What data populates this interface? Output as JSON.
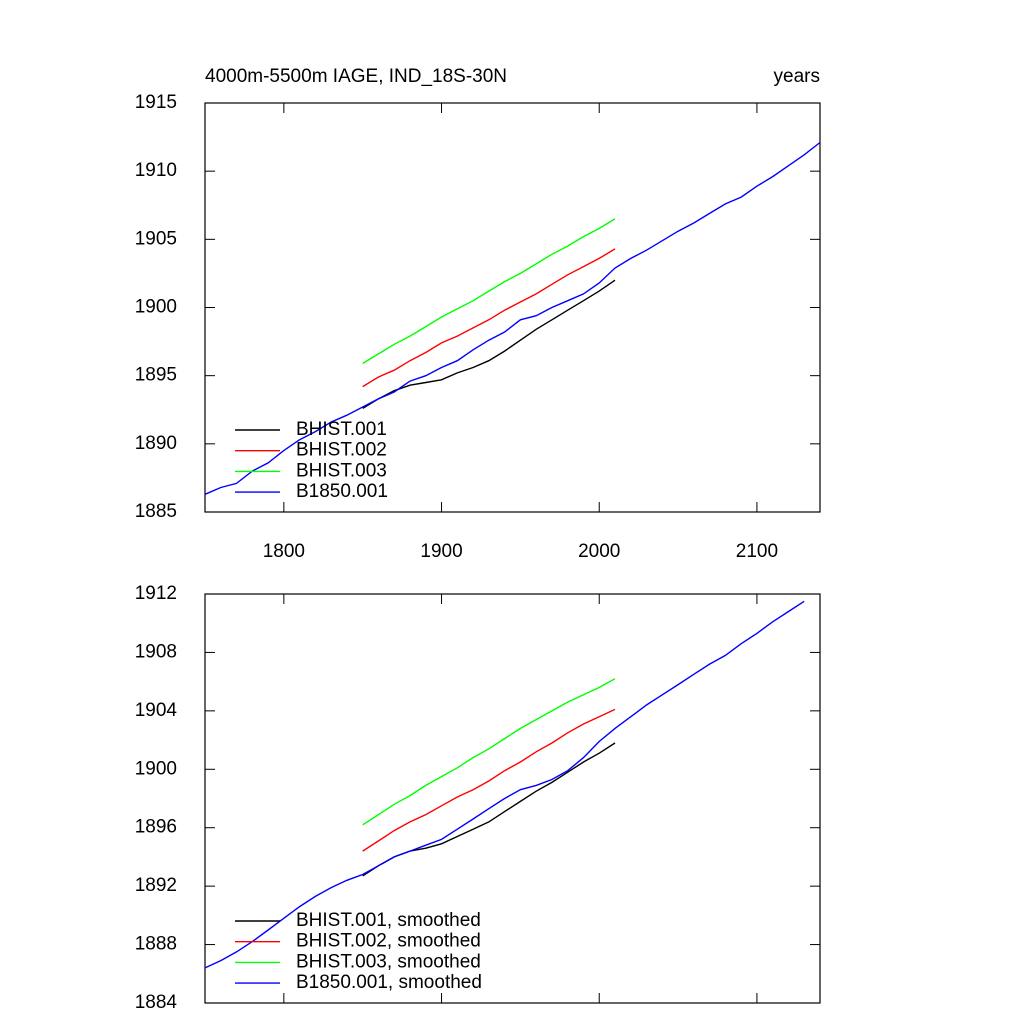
{
  "chart_data": [
    {
      "type": "line",
      "title": "4000m-5500m IAGE, IND_18S-30N",
      "subtitle": "years",
      "x": [
        1750,
        1760,
        1770,
        1780,
        1790,
        1800,
        1810,
        1820,
        1830,
        1840,
        1850,
        1860,
        1870,
        1880,
        1890,
        1900,
        1910,
        1920,
        1930,
        1940,
        1950,
        1960,
        1970,
        1980,
        1990,
        2000,
        2010,
        2020,
        2030,
        2040,
        2050,
        2060,
        2070,
        2080,
        2090,
        2100,
        2110,
        2120,
        2130,
        2140
      ],
      "xlim": [
        1750,
        2140
      ],
      "xticks": [
        1800,
        1900,
        2000,
        2100
      ],
      "ylim": [
        1885,
        1915
      ],
      "yticks": [
        1885,
        1890,
        1895,
        1900,
        1905,
        1910,
        1915
      ],
      "legend": "lower left",
      "series": [
        {
          "name": "BHIST.001",
          "color": "#000000",
          "values": [
            null,
            null,
            null,
            null,
            null,
            null,
            null,
            null,
            null,
            null,
            1892.6,
            1893.3,
            1893.9,
            1894.3,
            1894.5,
            1894.7,
            1895.2,
            1895.6,
            1896.1,
            1896.8,
            1897.6,
            1898.4,
            1899.1,
            1899.8,
            1900.5,
            1901.2,
            1902.0,
            null,
            null,
            null,
            null,
            null,
            null,
            null,
            null,
            null,
            null,
            null,
            null,
            null
          ]
        },
        {
          "name": "BHIST.002",
          "color": "#ff0000",
          "values": [
            null,
            null,
            null,
            null,
            null,
            null,
            null,
            null,
            null,
            null,
            1894.2,
            1894.9,
            1895.4,
            1896.1,
            1896.7,
            1897.4,
            1897.9,
            1898.5,
            1899.1,
            1899.8,
            1900.4,
            1901.0,
            1901.7,
            1902.4,
            1903.0,
            1903.6,
            1904.3,
            null,
            null,
            null,
            null,
            null,
            null,
            null,
            null,
            null,
            null,
            null,
            null,
            null
          ]
        },
        {
          "name": "BHIST.003",
          "color": "#00ff00",
          "values": [
            null,
            null,
            null,
            null,
            null,
            null,
            null,
            null,
            null,
            null,
            1895.9,
            1896.6,
            1897.3,
            1897.9,
            1898.6,
            1899.3,
            1899.9,
            1900.5,
            1901.2,
            1901.9,
            1902.5,
            1903.2,
            1903.9,
            1904.5,
            1905.2,
            1905.8,
            1906.5,
            null,
            null,
            null,
            null,
            null,
            null,
            null,
            null,
            null,
            null,
            null,
            null,
            null
          ]
        },
        {
          "name": "B1850.001",
          "color": "#0000ff",
          "values": [
            1886.3,
            1886.8,
            1887.1,
            1888.0,
            1888.6,
            1889.5,
            1890.3,
            1890.9,
            1891.6,
            1892.1,
            1892.7,
            1893.3,
            1893.8,
            1894.6,
            1895.0,
            1895.6,
            1896.1,
            1896.9,
            1897.6,
            1898.2,
            1899.1,
            1899.4,
            1900.0,
            1900.5,
            1901.0,
            1901.8,
            1902.9,
            1903.6,
            1904.2,
            1904.9,
            1905.6,
            1906.2,
            1906.9,
            1907.6,
            1908.1,
            1908.9,
            1909.6,
            1910.4,
            1911.2,
            1912.1
          ]
        }
      ]
    },
    {
      "type": "line",
      "x": [
        1750,
        1760,
        1770,
        1780,
        1790,
        1800,
        1810,
        1820,
        1830,
        1840,
        1850,
        1860,
        1870,
        1880,
        1890,
        1900,
        1910,
        1920,
        1930,
        1940,
        1950,
        1960,
        1970,
        1980,
        1990,
        2000,
        2010,
        2020,
        2030,
        2040,
        2050,
        2060,
        2070,
        2080,
        2090,
        2100,
        2110,
        2120,
        2130,
        2140
      ],
      "xlim": [
        1750,
        2140
      ],
      "xticks": [
        1800,
        1900,
        2000,
        2100
      ],
      "ylim": [
        1884,
        1912
      ],
      "yticks": [
        1884,
        1888,
        1892,
        1896,
        1900,
        1904,
        1908,
        1912
      ],
      "legend": "lower left",
      "series": [
        {
          "name": "BHIST.001, smoothed",
          "color": "#000000",
          "values": [
            null,
            null,
            null,
            null,
            null,
            null,
            null,
            null,
            null,
            null,
            1892.7,
            1893.4,
            1894.0,
            1894.4,
            1894.6,
            1894.9,
            1895.4,
            1895.9,
            1896.4,
            1897.1,
            1897.8,
            1898.5,
            1899.1,
            1899.8,
            1900.5,
            1901.1,
            1901.8,
            null,
            null,
            null,
            null,
            null,
            null,
            null,
            null,
            null,
            null,
            null,
            null,
            null
          ]
        },
        {
          "name": "BHIST.002, smoothed",
          "color": "#ff0000",
          "values": [
            null,
            null,
            null,
            null,
            null,
            null,
            null,
            null,
            null,
            null,
            1894.4,
            1895.1,
            1895.8,
            1896.4,
            1896.9,
            1897.5,
            1898.1,
            1898.6,
            1899.2,
            1899.9,
            1900.5,
            1901.2,
            1901.8,
            1902.5,
            1903.1,
            1903.6,
            1904.1,
            null,
            null,
            null,
            null,
            null,
            null,
            null,
            null,
            null,
            null,
            null,
            null,
            null
          ]
        },
        {
          "name": "BHIST.003, smoothed",
          "color": "#00ff00",
          "values": [
            null,
            null,
            null,
            null,
            null,
            null,
            null,
            null,
            null,
            null,
            1896.2,
            1896.9,
            1897.6,
            1898.2,
            1898.9,
            1899.5,
            1900.1,
            1900.8,
            1901.4,
            1902.1,
            1902.8,
            1903.4,
            1904.0,
            1904.6,
            1905.1,
            1905.6,
            1906.2,
            null,
            null,
            null,
            null,
            null,
            null,
            null,
            null,
            null,
            null,
            null,
            null,
            null
          ]
        },
        {
          "name": "B1850.001, smoothed",
          "color": "#0000ff",
          "values": [
            1886.4,
            1886.9,
            1887.5,
            1888.2,
            1889.0,
            1889.8,
            1890.6,
            1891.3,
            1891.9,
            1892.4,
            1892.8,
            1893.4,
            1894.0,
            1894.4,
            1894.8,
            1895.2,
            1895.9,
            1896.6,
            1897.3,
            1898.0,
            1898.6,
            1898.9,
            1899.3,
            1899.9,
            1900.8,
            1901.9,
            1902.8,
            1903.6,
            1904.4,
            1905.1,
            1905.8,
            1906.5,
            1907.2,
            1907.8,
            1908.6,
            1909.3,
            1910.1,
            1910.8,
            1911.5,
            null
          ]
        }
      ]
    }
  ]
}
